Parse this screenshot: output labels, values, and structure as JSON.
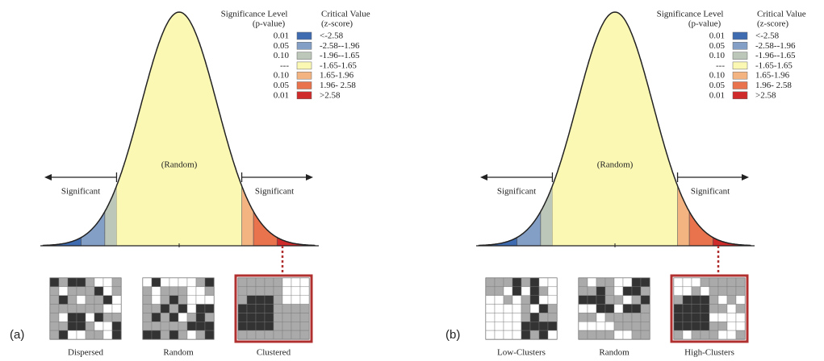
{
  "panels": [
    {
      "label": "(a)",
      "random_label": "(Random)",
      "significant_left": "Significant",
      "significant_right": "Significant",
      "legend": {
        "header_left": "Significance Level",
        "header_left_sub": "(p-value)",
        "header_right": "Critical Value",
        "header_right_sub": "(z-score)",
        "rows": [
          {
            "p": "0.01",
            "z": "<-2.58"
          },
          {
            "p": "0.05",
            "z": "-2.58--1.96"
          },
          {
            "p": "0.10",
            "z": "-1.96--1.65"
          },
          {
            "p": "---",
            "z": "-1.65-1.65"
          },
          {
            "p": "0.10",
            "z": "1.65-1.96"
          },
          {
            "p": "0.05",
            "z": "1.96- 2.58"
          },
          {
            "p": "0.01",
            "z": ">2.58"
          }
        ]
      },
      "maps": [
        "Dispersed",
        "Random",
        "Clustered"
      ]
    },
    {
      "label": "(b)",
      "random_label": "(Random)",
      "significant_left": "Significant",
      "significant_right": "Significant",
      "legend": {
        "header_left": "Significance Level",
        "header_left_sub": "(p-value)",
        "header_right": "Critical Value",
        "header_right_sub": "(z-score)",
        "rows": [
          {
            "p": "0.01",
            "z": "<-2.58"
          },
          {
            "p": "0.05",
            "z": "-2.58--1.96"
          },
          {
            "p": "0.10",
            "z": "-1.96--1.65"
          },
          {
            "p": "---",
            "z": "-1.65-1.65"
          },
          {
            "p": "0.10",
            "z": "1.65-1.96"
          },
          {
            "p": "0.05",
            "z": "1.96- 2.58"
          },
          {
            "p": "0.01",
            "z": ">2.58"
          }
        ]
      },
      "maps": [
        "Low-Clusters",
        "Random",
        "High-Clusters"
      ]
    }
  ]
}
